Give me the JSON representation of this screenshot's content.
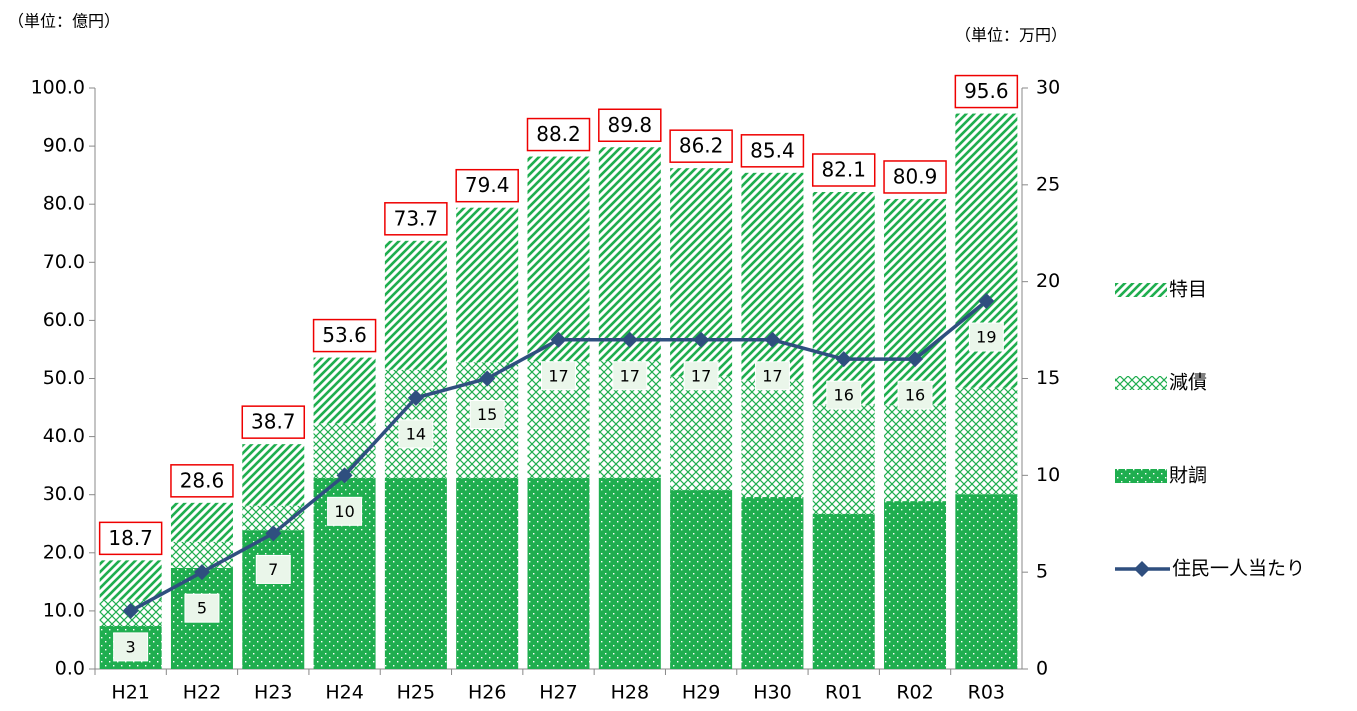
{
  "chart_data": {
    "type": "bar",
    "stacked": true,
    "unit_left": "（単位：億円）",
    "unit_right": "（単位：万円）",
    "categories": [
      "H21",
      "H22",
      "H23",
      "H24",
      "H25",
      "H26",
      "H27",
      "H28",
      "H29",
      "H30",
      "R01",
      "R02",
      "R03"
    ],
    "series": [
      {
        "name": "財調",
        "color": "#1fae4f",
        "pattern": "dots",
        "values": [
          7.4,
          17.4,
          23.9,
          32.9,
          32.9,
          32.9,
          32.9,
          32.9,
          30.8,
          29.6,
          26.7,
          28.9,
          30.1
        ]
      },
      {
        "name": "減債",
        "color": "#1fae4f",
        "pattern": "cross",
        "values": [
          4.5,
          4.5,
          4.2,
          9.4,
          18.6,
          19.9,
          20.1,
          20.1,
          19.6,
          20.1,
          18.7,
          16.5,
          18.3
        ]
      },
      {
        "name": "特目",
        "color": "#1fae4f",
        "pattern": "diagonal",
        "values": [
          6.8,
          6.7,
          10.6,
          11.3,
          22.2,
          26.6,
          35.2,
          36.8,
          35.8,
          35.7,
          36.7,
          35.5,
          47.2
        ]
      },
      {
        "name": "住民一人当たり",
        "type": "line",
        "axis": "y2",
        "color": "#2f4f7f",
        "values": [
          3,
          5,
          7,
          10,
          14,
          15,
          17,
          17,
          17,
          17,
          16,
          16,
          19
        ]
      }
    ],
    "totals": [
      18.7,
      28.6,
      38.7,
      53.6,
      73.7,
      79.4,
      88.2,
      89.8,
      86.2,
      85.4,
      82.1,
      80.9,
      95.6
    ],
    "ylim": [
      0,
      100
    ],
    "yticks": [
      {
        "value": 0,
        "label": "0.0"
      },
      {
        "value": 10,
        "label": "10.0"
      },
      {
        "value": 20,
        "label": "20.0"
      },
      {
        "value": 30,
        "label": "30.0"
      },
      {
        "value": 40,
        "label": "40.0"
      },
      {
        "value": 50,
        "label": "50.0"
      },
      {
        "value": 60,
        "label": "60.0"
      },
      {
        "value": 70,
        "label": "70.0"
      },
      {
        "value": 80,
        "label": "80.0"
      },
      {
        "value": 90,
        "label": "90.0"
      },
      {
        "value": 100,
        "label": "100.0"
      }
    ],
    "y2lim": [
      0,
      30
    ],
    "y2ticks": [
      0,
      5,
      10,
      15,
      20,
      25,
      30
    ],
    "grid": false,
    "legend": "right"
  }
}
